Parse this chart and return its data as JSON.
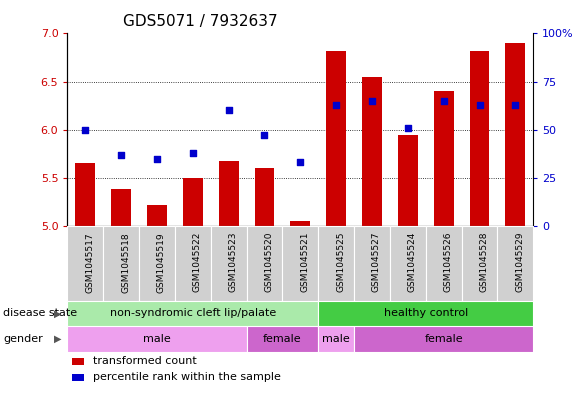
{
  "title": "GDS5071 / 7932637",
  "samples": [
    "GSM1045517",
    "GSM1045518",
    "GSM1045519",
    "GSM1045522",
    "GSM1045523",
    "GSM1045520",
    "GSM1045521",
    "GSM1045525",
    "GSM1045527",
    "GSM1045524",
    "GSM1045526",
    "GSM1045528",
    "GSM1045529"
  ],
  "transformed_count": [
    5.65,
    5.38,
    5.22,
    5.5,
    5.68,
    5.6,
    5.05,
    6.82,
    6.55,
    5.95,
    6.4,
    6.82,
    6.9
  ],
  "percentile_rank": [
    50,
    37,
    35,
    38,
    60,
    47,
    33,
    63,
    65,
    51,
    65,
    63,
    63
  ],
  "ylim_left": [
    5.0,
    7.0
  ],
  "ylim_right": [
    0,
    100
  ],
  "yticks_left": [
    5.0,
    5.5,
    6.0,
    6.5,
    7.0
  ],
  "yticks_right": [
    0,
    25,
    50,
    75,
    100
  ],
  "ytick_labels_right": [
    "0",
    "25",
    "50",
    "75",
    "100%"
  ],
  "bar_color": "#cc0000",
  "dot_color": "#0000cc",
  "dot_size": 25,
  "disease_state_groups": [
    {
      "label": "non-syndromic cleft lip/palate",
      "start": 0,
      "end": 7,
      "color": "#aaeaaa"
    },
    {
      "label": "healthy control",
      "start": 7,
      "end": 13,
      "color": "#44cc44"
    }
  ],
  "gender_groups": [
    {
      "label": "male",
      "start": 0,
      "end": 5,
      "color": "#eea0ee"
    },
    {
      "label": "female",
      "start": 5,
      "end": 7,
      "color": "#cc66cc"
    },
    {
      "label": "male",
      "start": 7,
      "end": 8,
      "color": "#eea0ee"
    },
    {
      "label": "female",
      "start": 8,
      "end": 13,
      "color": "#cc66cc"
    }
  ],
  "left_tick_color": "#cc0000",
  "right_tick_color": "#0000cc",
  "tick_fontsize": 8,
  "title_fontsize": 11,
  "bar_bottom": 5.0,
  "sample_bg_color": "#d0d0d0",
  "sample_fontsize": 6.5,
  "legend_items": [
    {
      "label": "transformed count",
      "color": "#cc0000"
    },
    {
      "label": "percentile rank within the sample",
      "color": "#0000cc"
    }
  ]
}
